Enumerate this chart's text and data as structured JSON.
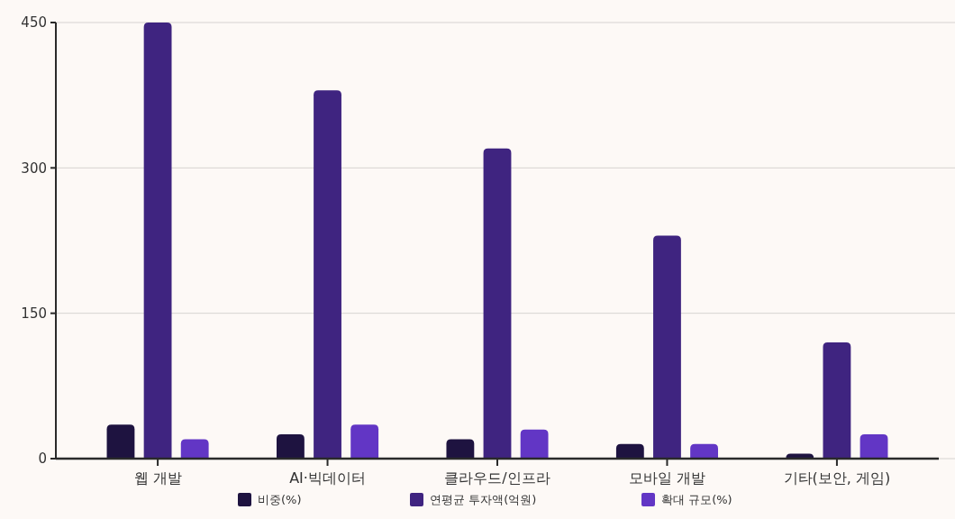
{
  "chart_data": {
    "type": "bar",
    "categories": [
      "웹 개발",
      "AI·빅데이터",
      "클라우드/인프라",
      "모바일 개발",
      "기타(보안, 게임)"
    ],
    "series": [
      {
        "name": "비중(%)",
        "color": "#1e1340",
        "values": [
          35,
          25,
          20,
          15,
          5
        ]
      },
      {
        "name": "연평균 투자액(억원)",
        "color": "#3f2480",
        "values": [
          450,
          380,
          320,
          230,
          120
        ]
      },
      {
        "name": "확대 규모(%)",
        "color": "#6236c5",
        "values": [
          20,
          35,
          30,
          15,
          25
        ]
      }
    ],
    "ylim": [
      0,
      450
    ],
    "yticks": [
      0,
      150,
      300,
      450
    ],
    "grid": "y",
    "legend": "bottom"
  }
}
